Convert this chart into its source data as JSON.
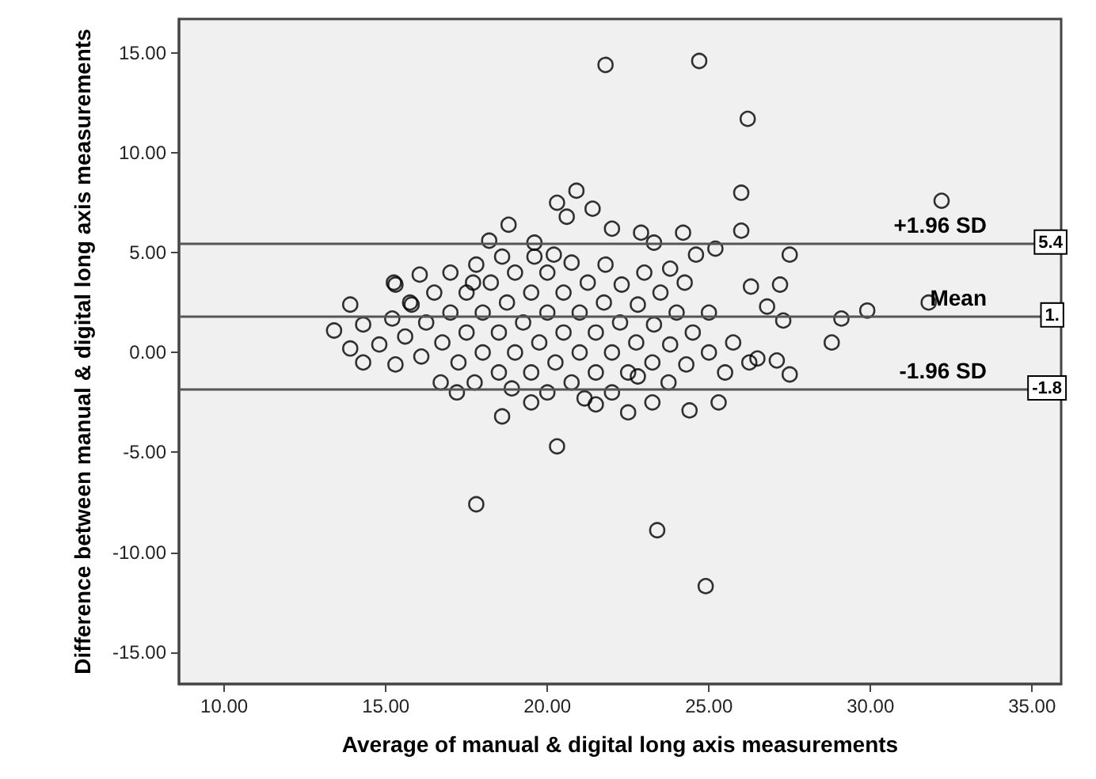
{
  "chart_data": {
    "type": "scatter",
    "xlabel": "Average of manual & digital long axis measurements",
    "ylabel": "Difference between manual & digital long axis measurements",
    "xlim": [
      8.6,
      35.9
    ],
    "ylim": [
      -16.6,
      16.7
    ],
    "xticks": [
      {
        "value": 10,
        "label": "10.00"
      },
      {
        "value": 15,
        "label": "15.00"
      },
      {
        "value": 20,
        "label": "20.00"
      },
      {
        "value": 25,
        "label": "25.00"
      },
      {
        "value": 30,
        "label": "30.00"
      },
      {
        "value": 35,
        "label": "35.00"
      }
    ],
    "yticks": [
      {
        "value": -15,
        "label": "-15.00"
      },
      {
        "value": -10,
        "label": "-10.00"
      },
      {
        "value": -5,
        "label": "-5.00"
      },
      {
        "value": 0,
        "label": "0.00"
      },
      {
        "value": 5,
        "label": "5.00"
      },
      {
        "value": 10,
        "label": "10.00"
      },
      {
        "value": 15,
        "label": "15.00"
      }
    ],
    "grid": false,
    "marker": "circle",
    "series": [
      {
        "color": "#000000",
        "x": [
          21.8,
          24.7,
          26.2,
          26.0,
          26.0,
          32.2,
          31.8,
          29.9,
          29.1,
          28.8,
          27.5,
          27.5,
          17.8,
          20.3,
          18.6,
          23.4,
          24.9,
          22.5,
          24.4,
          25.3,
          20.9,
          21.4,
          20.3,
          20.6,
          18.8,
          18.2,
          13.4,
          13.9,
          14.3,
          13.9,
          14.3,
          14.8,
          15.3,
          15.2,
          15.3,
          15.6,
          15.8,
          16.1,
          15.25,
          15.75,
          16.25,
          16.75,
          17.25,
          17.75,
          16.05,
          16.5,
          17.0,
          17.5,
          18.0,
          18.5,
          18.9,
          17.0,
          17.5,
          18.0,
          18.5,
          19.0,
          19.5,
          20.0,
          17.8,
          18.25,
          18.75,
          19.25,
          19.75,
          20.25,
          20.75,
          21.15,
          18.6,
          19.0,
          19.5,
          20.0,
          20.5,
          21.0,
          21.5,
          22.0,
          19.6,
          20.0,
          20.5,
          21.0,
          21.5,
          22.0,
          22.5,
          23.25,
          20.75,
          21.25,
          21.75,
          22.25,
          22.75,
          23.25,
          23.75,
          21.8,
          22.3,
          22.8,
          23.3,
          23.8,
          24.3,
          23.0,
          23.5,
          24.0,
          24.5,
          25.0,
          25.5,
          24.25,
          25.0,
          25.75,
          26.25,
          26.3,
          26.8,
          27.2,
          27.3,
          26.5,
          27.1,
          25.2,
          24.2,
          23.8,
          22.9,
          24.6,
          22.0,
          23.3,
          20.2,
          19.6,
          17.7,
          21.5,
          19.5,
          17.2,
          16.7,
          22.8
        ],
        "values": [
          14.4,
          14.6,
          11.7,
          8.0,
          6.1,
          7.6,
          2.5,
          2.1,
          1.7,
          0.5,
          4.9,
          -1.1,
          -7.6,
          -4.7,
          -3.2,
          -8.9,
          -11.7,
          -3.0,
          -2.9,
          -2.5,
          8.1,
          7.2,
          7.5,
          6.8,
          6.4,
          5.6,
          1.1,
          2.4,
          1.4,
          0.2,
          -0.5,
          0.4,
          -0.6,
          1.7,
          3.4,
          0.8,
          2.4,
          -0.2,
          3.5,
          2.5,
          1.5,
          0.5,
          -0.5,
          -1.5,
          3.9,
          3.0,
          2.0,
          1.0,
          0.0,
          -1.0,
          -1.8,
          4.0,
          3.0,
          2.0,
          1.0,
          0.0,
          -1.0,
          -2.0,
          4.4,
          3.5,
          2.5,
          1.5,
          0.5,
          -0.5,
          -1.5,
          -2.3,
          4.8,
          4.0,
          3.0,
          2.0,
          1.0,
          0.0,
          -1.0,
          -2.0,
          4.8,
          4.0,
          3.0,
          2.0,
          1.0,
          0.0,
          -1.0,
          -2.5,
          4.5,
          3.5,
          2.5,
          1.5,
          0.5,
          -0.5,
          -1.5,
          4.4,
          3.4,
          2.4,
          1.4,
          0.4,
          -0.6,
          4.0,
          3.0,
          2.0,
          1.0,
          0.0,
          -1.0,
          3.5,
          2.0,
          0.5,
          -0.5,
          3.3,
          2.3,
          3.4,
          1.6,
          -0.3,
          -0.4,
          5.2,
          6.0,
          4.2,
          6.0,
          4.9,
          6.2,
          5.5,
          4.9,
          5.5,
          3.5,
          -2.6,
          -2.5,
          -2.0,
          -1.5,
          -1.2
        ]
      }
    ],
    "ref_lines": [
      {
        "axis": "y",
        "value": 5.45,
        "label": "+1.96 SD"
      },
      {
        "axis": "y",
        "value": 1.8,
        "label": "Mean"
      },
      {
        "axis": "y",
        "value": -1.85,
        "label": "-1.96 SD"
      }
    ],
    "annotations": [
      {
        "text": "5.4",
        "x": 35.1,
        "y": 5.45
      },
      {
        "text": "1.",
        "x": 35.3,
        "y": 1.8
      },
      {
        "text": "-1.8",
        "x": 34.9,
        "y": -1.85
      }
    ]
  }
}
